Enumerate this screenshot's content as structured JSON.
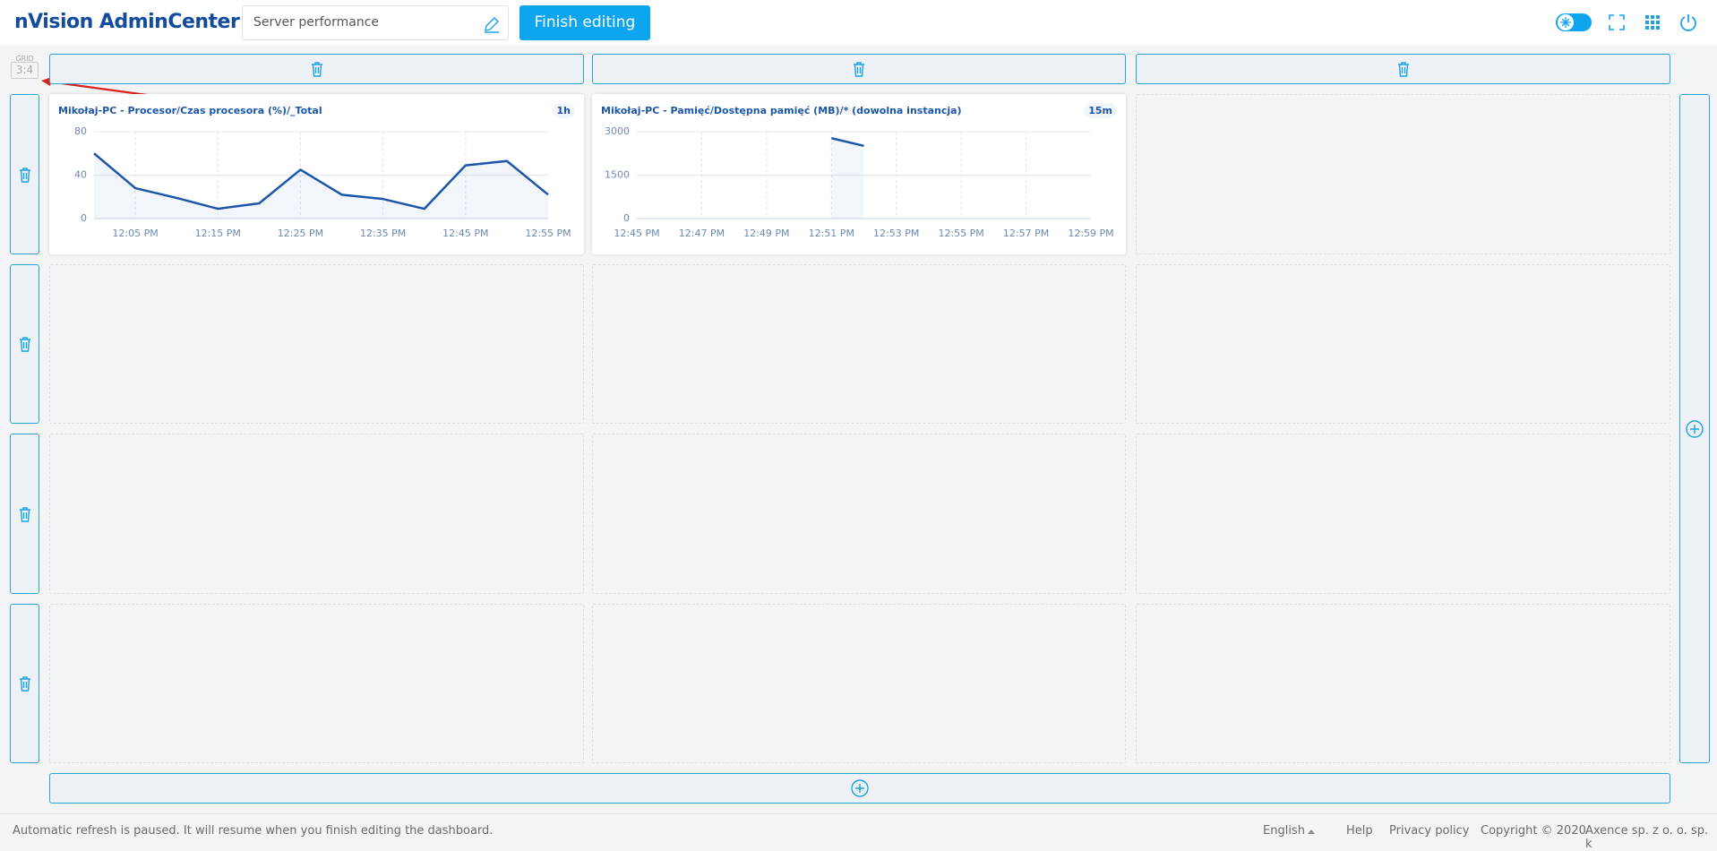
{
  "header": {
    "title": "nVision AdminCenter",
    "dashboard_name": "Server performance",
    "button": "Finish editing"
  },
  "grid": {
    "label": "GRID",
    "ratio": "3:4"
  },
  "widgets": [
    {
      "title": "Mikołaj-PC - Procesor/Czas procesora (%)/_Total",
      "period": "1h",
      "chart_data": {
        "type": "line",
        "categories": [
          null,
          "12:05 PM",
          null,
          "12:15 PM",
          null,
          "12:25 PM",
          null,
          "12:35 PM",
          null,
          "12:45 PM",
          null,
          "12:55 PM"
        ],
        "values": [
          60,
          28,
          19,
          9,
          14,
          45,
          22,
          18,
          9,
          49,
          53,
          22
        ],
        "color": "#1b56a8",
        "ylim": [
          0,
          80
        ],
        "yticks": [
          0,
          40,
          80
        ],
        "grid": true
      }
    },
    {
      "title": "Mikołaj-PC - Pamięć/Dostępna pamięć (MB)/* (dowolna instancja)",
      "period": "15m",
      "chart_data": {
        "type": "line",
        "categories": [
          "12:45 PM",
          null,
          "12:47 PM",
          null,
          "12:49 PM",
          null,
          "12:51 PM",
          null,
          "12:53 PM",
          null,
          "12:55 PM",
          null,
          "12:57 PM",
          null,
          "12:59 PM"
        ],
        "values": [
          null,
          null,
          null,
          null,
          null,
          null,
          2775,
          2510,
          null,
          null,
          null,
          null,
          null,
          null,
          null
        ],
        "color": "#1b56a8",
        "ylim": [
          0,
          3000
        ],
        "yticks": [
          0,
          1500,
          3000
        ],
        "grid": true
      }
    }
  ],
  "footer": {
    "status": "Automatic refresh is paused. It will resume when you finish editing the dashboard.",
    "language": "English",
    "help": "Help",
    "privacy": "Privacy policy",
    "copyright": "Copyright © 2020",
    "company": "Axence sp. z o. o. sp. k"
  }
}
